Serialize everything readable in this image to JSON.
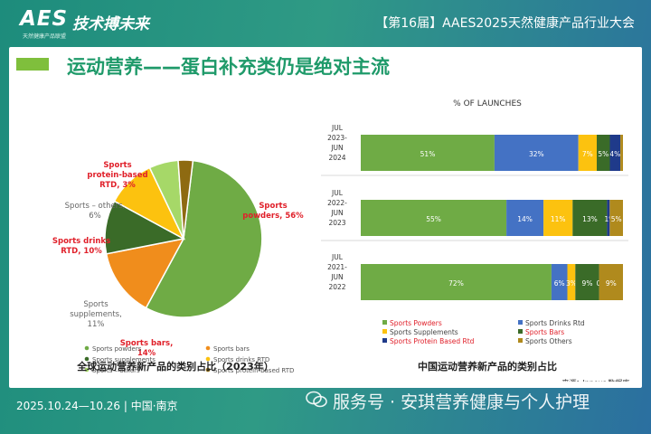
{
  "header": {
    "logo": "AES",
    "slogan": "技术搏未来",
    "logo_sub": "天然健康产品联盟",
    "event_title": "【第16届】AAES2025天然健康产品行业大会"
  },
  "slide": {
    "title": "运动营养——蛋白补充类仍是绝对主流",
    "source": "来源：Innova数据库"
  },
  "footer": {
    "date": "2025.10.24—10.26  |  中国·南京",
    "watermark": "服务号 · 安琪营养健康与个人护理"
  },
  "colors": {
    "powders": "#6fab45",
    "bars": "#f08d1c",
    "supplements": "#3a6b28",
    "drinks": "#fcc20f",
    "others": "#a6d868",
    "protein_rtd": "#8e6a11",
    "drinks_rtd_bar": "#4472c4",
    "protein_rtd_bar": "#1f3a8a",
    "others_bar": "#b08a1d",
    "accent": "#7fbf3c"
  },
  "chart_data": [
    {
      "type": "pie",
      "caption": "全球运动营养新产品的类别占比（2023年）",
      "slices": [
        {
          "name": "Sports powders",
          "value": 56,
          "label_lines": [
            "Sports",
            "powders, 56%"
          ],
          "red": true,
          "color_key": "powders"
        },
        {
          "name": "Sports bars",
          "value": 14,
          "label_lines": [
            "Sports bars,",
            "14%"
          ],
          "red": true,
          "color_key": "bars"
        },
        {
          "name": "Sports supplements",
          "value": 11,
          "label_lines": [
            "Sports",
            "supplements,",
            "11%"
          ],
          "red": false,
          "color_key": "supplements"
        },
        {
          "name": "Sports drinks RTD",
          "value": 10,
          "label_lines": [
            "Sports drinks",
            "RTD, 10%"
          ],
          "red": true,
          "color_key": "drinks"
        },
        {
          "name": "Sports – others",
          "value": 6,
          "label_lines": [
            "Sports – others,",
            "6%"
          ],
          "red": false,
          "color_key": "others"
        },
        {
          "name": "Sports protein-based RTD",
          "value": 3,
          "label_lines": [
            "Sports",
            "protein-based",
            "RTD, 3%"
          ],
          "red": true,
          "color_key": "protein_rtd"
        }
      ],
      "legend": [
        {
          "label": "Sports powders",
          "color_key": "powders"
        },
        {
          "label": "Sports bars",
          "color_key": "bars"
        },
        {
          "label": "Sports supplements",
          "color_key": "supplements"
        },
        {
          "label": "Sports drinks RTD",
          "color_key": "drinks"
        },
        {
          "label": "Sports – others",
          "color_key": "others"
        },
        {
          "label": "Sports protein-based RTD",
          "color_key": "protein_rtd"
        }
      ]
    },
    {
      "type": "bar",
      "orientation": "horizontal-stacked-100",
      "title": "% OF LAUNCHES",
      "caption": "中国运动营养新产品的类别占比",
      "categories": [
        [
          "JUL",
          "2023-",
          "JUN",
          "2024"
        ],
        [
          "JUL",
          "2022-",
          "JUN",
          "2023"
        ],
        [
          "JUL",
          "2021-",
          "JUN",
          "2022"
        ]
      ],
      "series": [
        {
          "name": "Sports Powders",
          "color_key": "powders",
          "red_label": true,
          "values": [
            51,
            55,
            72
          ]
        },
        {
          "name": "Sports Drinks Rtd",
          "color_key": "drinks_rtd_bar",
          "red_label": false,
          "values": [
            32,
            14,
            6
          ]
        },
        {
          "name": "Sports Supplements",
          "color_key": "drinks",
          "red_label": false,
          "values": [
            7,
            11,
            3
          ]
        },
        {
          "name": "Sports Bars",
          "color_key": "supplements",
          "red_label": true,
          "values": [
            5,
            13,
            9
          ]
        },
        {
          "name": "Sports Protein Based Rtd",
          "color_key": "protein_rtd_bar",
          "red_label": true,
          "values": [
            4,
            1,
            0
          ]
        },
        {
          "name": "Sports Others",
          "color_key": "others_bar",
          "red_label": false,
          "values": [
            1,
            5,
            9
          ]
        }
      ],
      "data_labels": [
        [
          "51%",
          "32%",
          "7%",
          "5%",
          "4%",
          ""
        ],
        [
          "55%",
          "14%",
          "11%",
          "13%",
          "1%",
          "5%"
        ],
        [
          "72%",
          "6%",
          "3%",
          "9%",
          "0%",
          "9%"
        ]
      ],
      "xlim": [
        0,
        100
      ]
    }
  ]
}
